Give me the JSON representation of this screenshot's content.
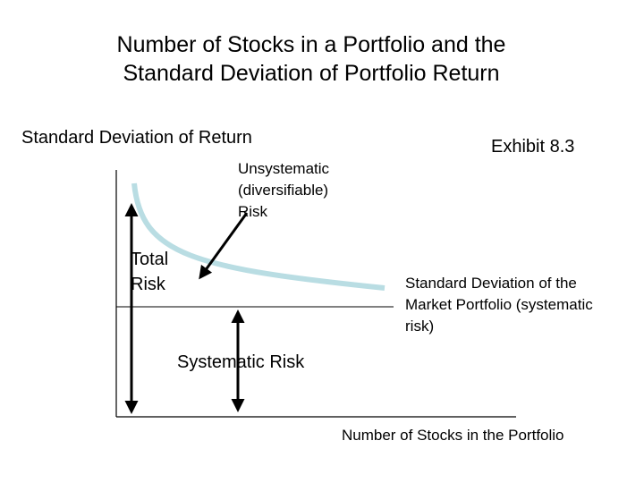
{
  "title": [
    "Number of Stocks in a Portfolio and the",
    "Standard Deviation of Portfolio Return"
  ],
  "y_axis_label": "Standard Deviation of Return",
  "exhibit": "Exhibit 8.3",
  "unsystematic": [
    "Unsystematic",
    "(diversifiable)",
    "Risk"
  ],
  "total_risk": [
    "Total",
    "Risk"
  ],
  "market": [
    "Standard Deviation of the",
    "Market Portfolio (systematic",
    "risk)"
  ],
  "systematic": "Systematic Risk",
  "x_axis_label": "Number of Stocks in the Portfolio"
}
